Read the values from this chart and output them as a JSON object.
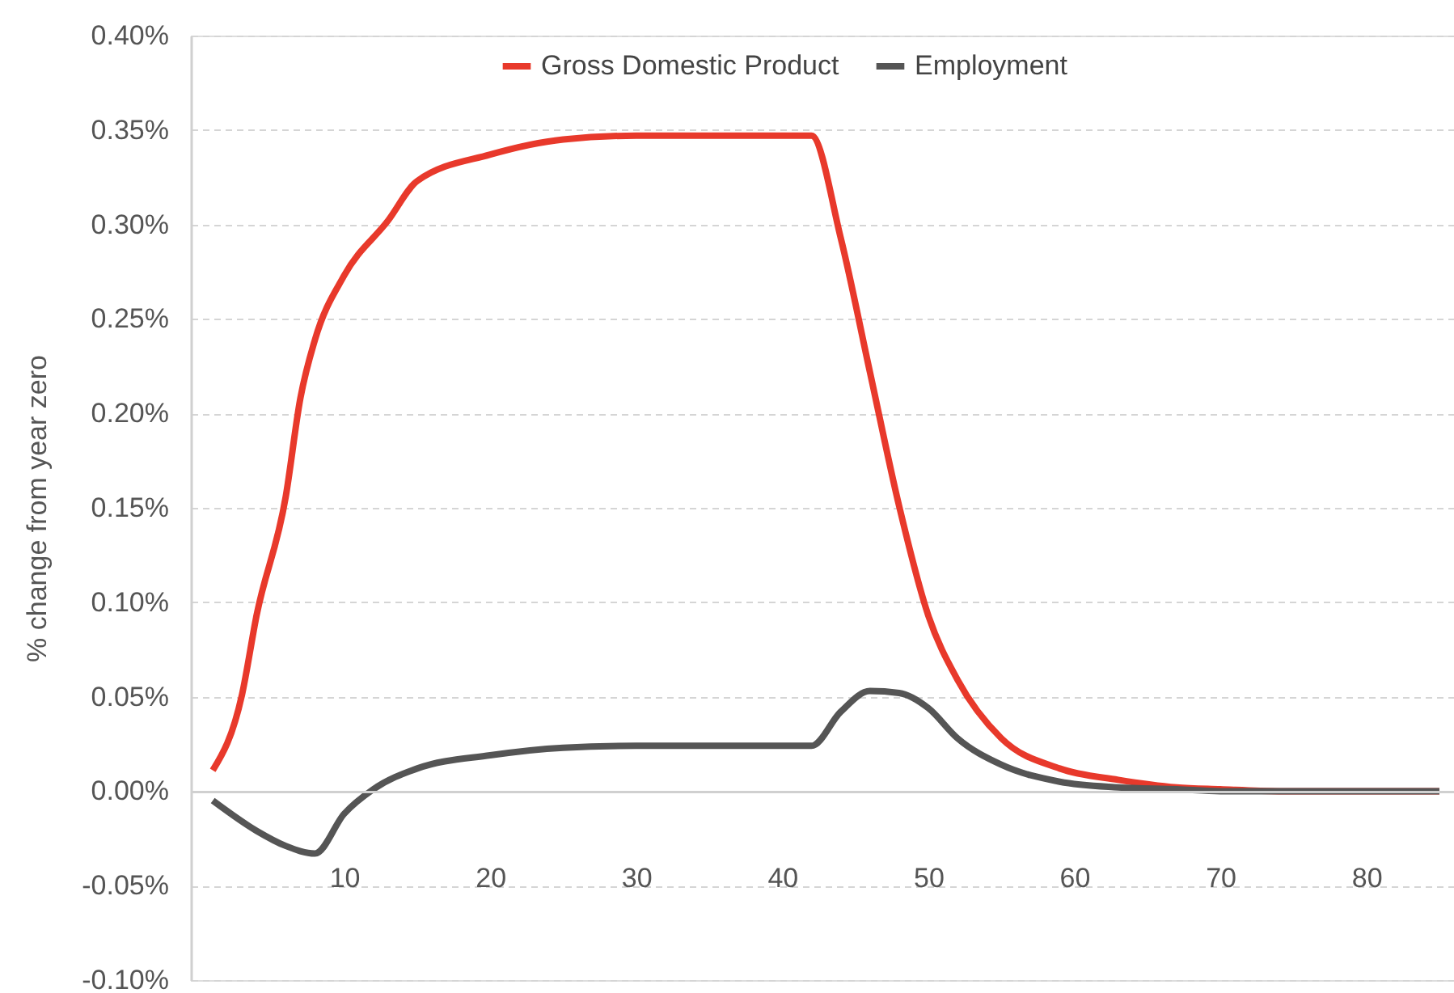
{
  "chart_data": {
    "type": "line",
    "ylabel": "% change from year zero",
    "xlim": [
      -0.5,
      86
    ],
    "xticks": [
      10,
      20,
      30,
      40,
      50,
      60,
      70,
      80
    ],
    "ylim": [
      -0.1,
      0.4
    ],
    "yticks": [
      {
        "value": -0.1,
        "label": "-0.10%"
      },
      {
        "value": -0.05,
        "label": "-0.05%"
      },
      {
        "value": 0,
        "label": "0.00%"
      },
      {
        "value": 0.05,
        "label": "0.05%"
      },
      {
        "value": 0.1,
        "label": "0.10%"
      },
      {
        "value": 0.15,
        "label": "0.15%"
      },
      {
        "value": 0.2,
        "label": "0.20%"
      },
      {
        "value": 0.25,
        "label": "0.25%"
      },
      {
        "value": 0.3,
        "label": "0.30%"
      },
      {
        "value": 0.35,
        "label": "0.35%"
      },
      {
        "value": 0.4,
        "label": "0.40%"
      }
    ],
    "grid": "y",
    "legend": "top",
    "marker": "none",
    "line_style": "solid",
    "series": [
      {
        "name": "Gross Domestic Product",
        "color": "#e8392b",
        "x": [
          1,
          3,
          4,
          6,
          7,
          8,
          10,
          13,
          15,
          20,
          25,
          30,
          35,
          42,
          44,
          46,
          48,
          50,
          52,
          55,
          59,
          63,
          67,
          70,
          74,
          80,
          85
        ],
        "values": [
          0.011,
          0.051,
          0.093,
          0.156,
          0.208,
          0.239,
          0.273,
          0.302,
          0.323,
          0.337,
          0.345,
          0.347,
          0.347,
          0.347,
          0.293,
          0.222,
          0.151,
          0.093,
          0.059,
          0.028,
          0.012,
          0.006,
          0.002,
          0.001,
          0,
          0,
          0
        ]
      },
      {
        "name": "Employment",
        "color": "#555555",
        "x": [
          1,
          4,
          6,
          8,
          10,
          12,
          15,
          20,
          25,
          30,
          35,
          42,
          44,
          46,
          48,
          50,
          52,
          55,
          59,
          63,
          67,
          70,
          80,
          85
        ],
        "values": [
          -0.005,
          -0.021,
          -0.029,
          -0.033,
          -0.012,
          0.001,
          0.012,
          0.019,
          0.023,
          0.024,
          0.024,
          0.024,
          0.042,
          0.053,
          0.052,
          0.044,
          0.028,
          0.014,
          0.005,
          0.002,
          0.001,
          0,
          0,
          0
        ]
      }
    ]
  }
}
